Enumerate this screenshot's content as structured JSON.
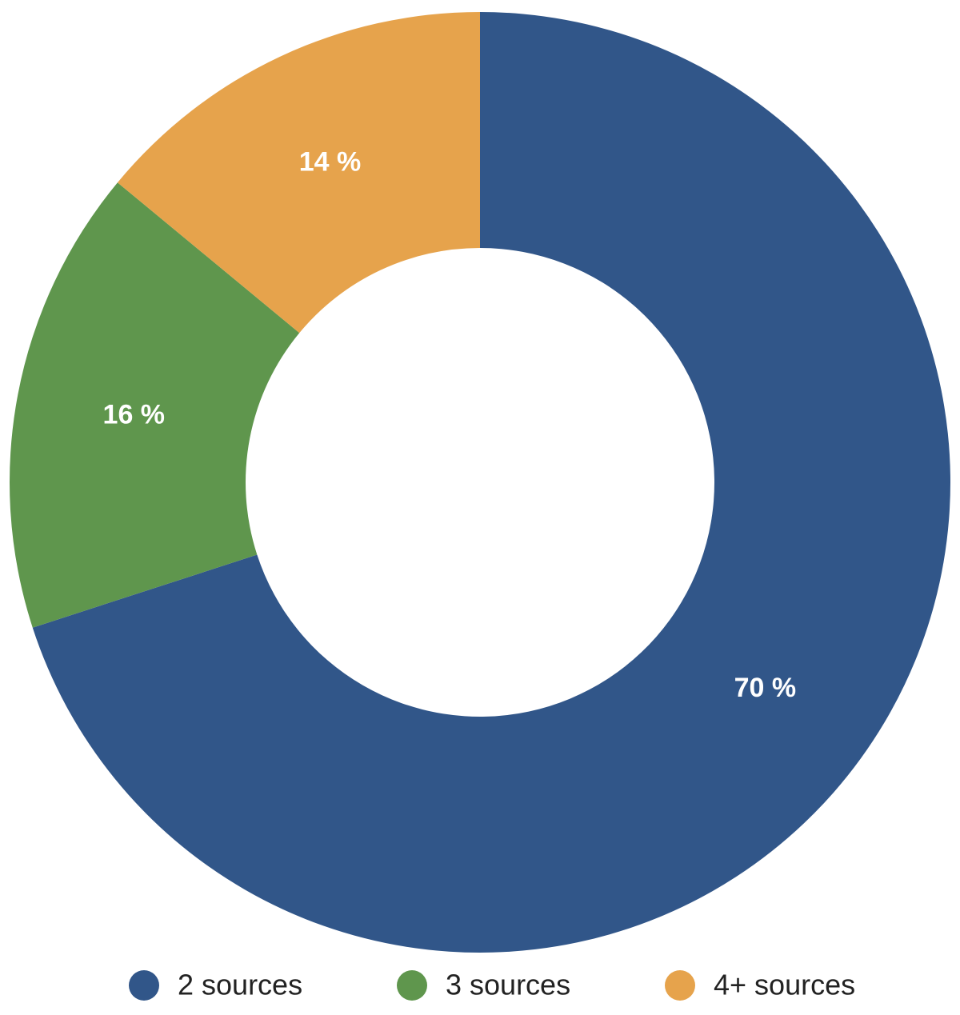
{
  "chart_data": {
    "type": "donut",
    "categories": [
      "2 sources",
      "3 sources",
      "4+ sources"
    ],
    "values": [
      70,
      16,
      14
    ],
    "value_labels": [
      "70 %",
      "16 %",
      "14 %"
    ],
    "colors": [
      "#315689",
      "#5f964d",
      "#e6a34c"
    ],
    "legend": "bottom"
  }
}
